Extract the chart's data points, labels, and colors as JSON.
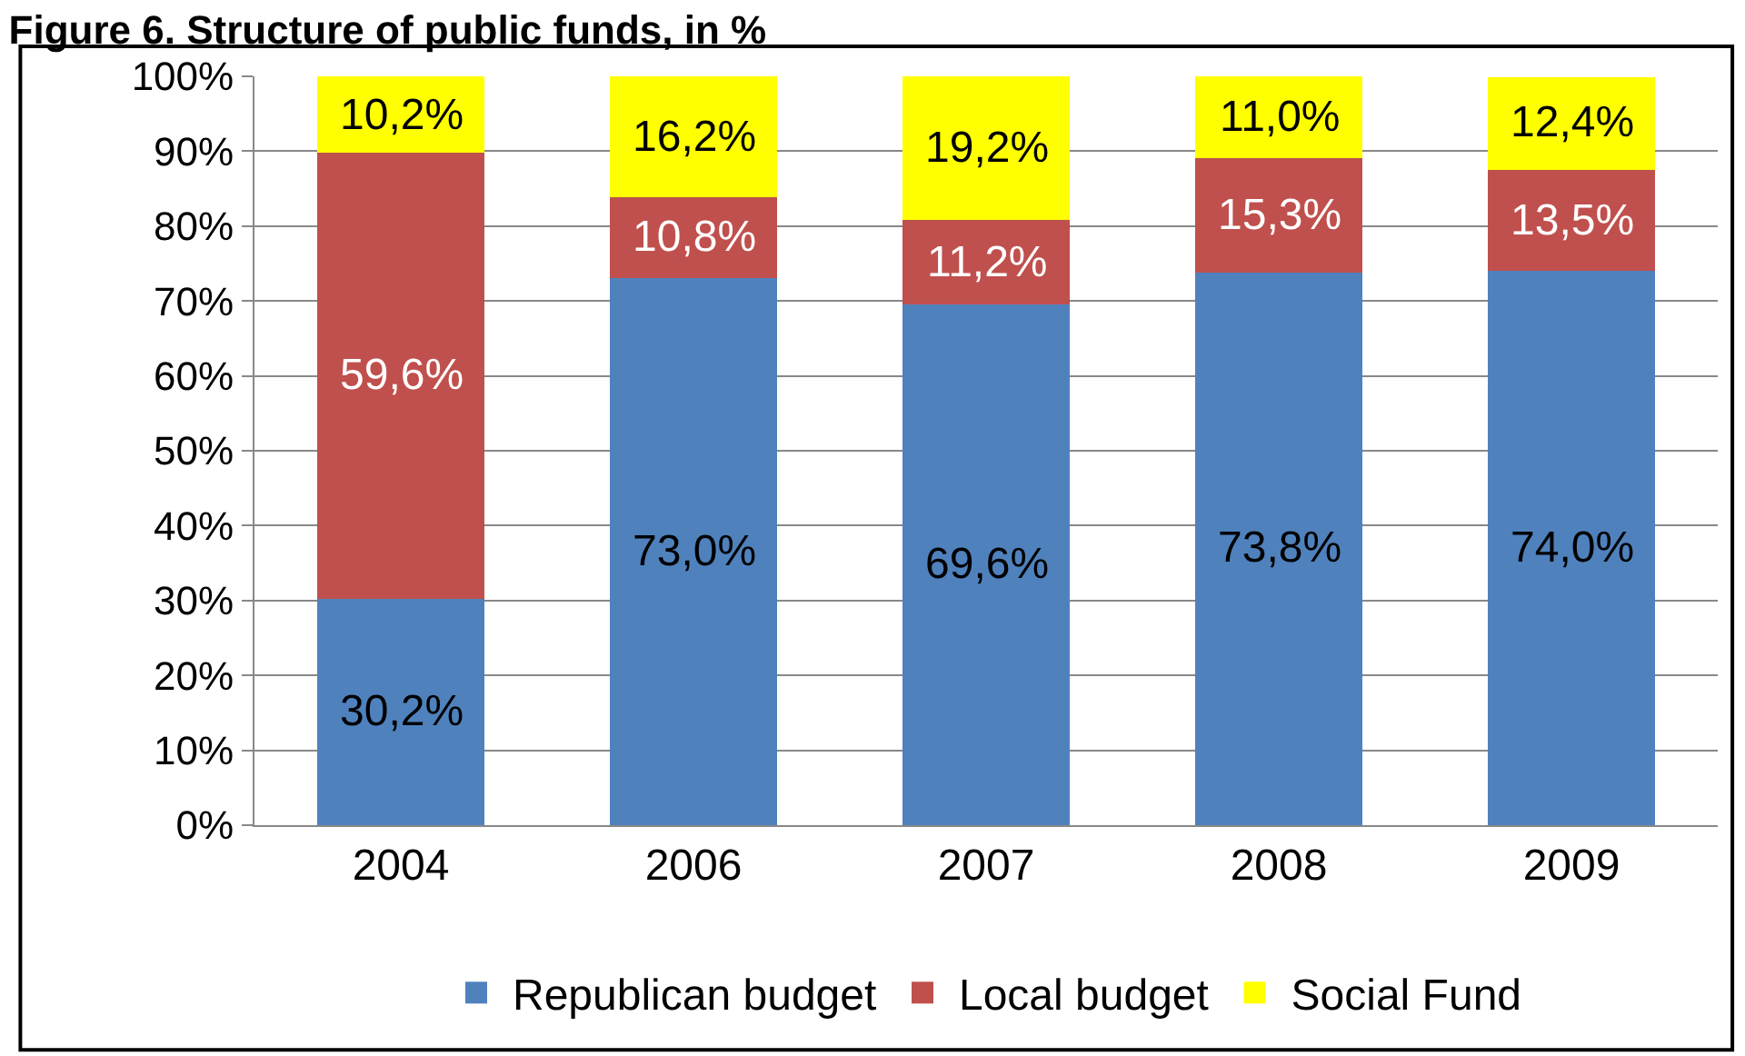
{
  "chart_data": {
    "type": "bar",
    "title": "Figure 6. Structure of public funds, in %",
    "stacked": true,
    "categories": [
      "2004",
      "2006",
      "2007",
      "2008",
      "2009"
    ],
    "series": [
      {
        "name": "Republican budget",
        "color": "#4f81bd",
        "values": [
          30.2,
          73.0,
          69.6,
          73.8,
          74.0
        ],
        "value_labels": [
          "30,2%",
          "73,0%",
          "69,6%",
          "73,8%",
          "74,0%"
        ]
      },
      {
        "name": "Local budget",
        "color": "#c0504d",
        "values": [
          59.6,
          10.8,
          11.2,
          15.3,
          13.5
        ],
        "value_labels": [
          "59,6%",
          "10,8%",
          "11,2%",
          "15,3%",
          "13,5%"
        ]
      },
      {
        "name": "Social Fund",
        "color": "#ffff00",
        "values": [
          10.2,
          16.2,
          19.2,
          11.0,
          12.4
        ],
        "value_labels": [
          "10,2%",
          "16,2%",
          "19,2%",
          "11,0%",
          "12,4%"
        ]
      }
    ],
    "ylim": [
      0,
      100
    ],
    "yticks": [
      {
        "value": 0,
        "label": "0%"
      },
      {
        "value": 10,
        "label": "10%"
      },
      {
        "value": 20,
        "label": "20%"
      },
      {
        "value": 30,
        "label": "30%"
      },
      {
        "value": 40,
        "label": "40%"
      },
      {
        "value": 50,
        "label": "50%"
      },
      {
        "value": 60,
        "label": "60%"
      },
      {
        "value": 70,
        "label": "70%"
      },
      {
        "value": 80,
        "label": "80%"
      },
      {
        "value": 90,
        "label": "90%"
      },
      {
        "value": 100,
        "label": "100%"
      }
    ],
    "grid": "y",
    "legend": "bottom"
  }
}
